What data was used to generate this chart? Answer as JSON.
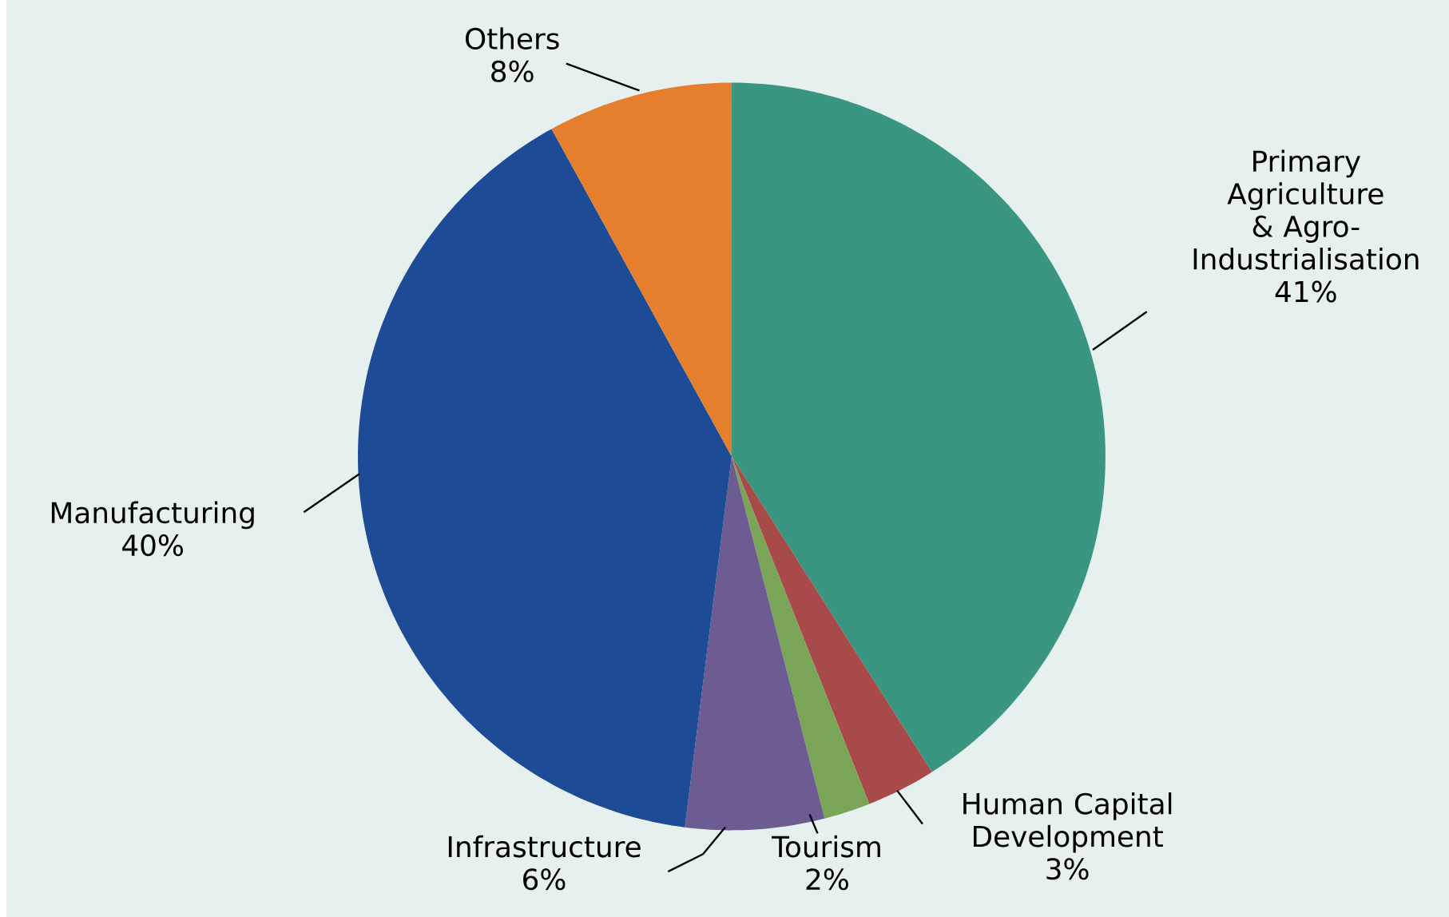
{
  "chart_data": {
    "type": "pie",
    "categories": [
      "Primary Agriculture & Agro-Industrialisation",
      "Human Capital Development",
      "Tourism",
      "Infrastructure",
      "Manufacturing",
      "Others"
    ],
    "values": [
      41,
      3,
      2,
      6,
      40,
      8
    ],
    "value_labels": [
      "41%",
      "3%",
      "2%",
      "6%",
      "40%",
      "8%"
    ],
    "colors": [
      "#3a9680",
      "#a84a4a",
      "#7aa558",
      "#6d5c91",
      "#1e4b96",
      "#e57f2e"
    ],
    "legend": false
  }
}
